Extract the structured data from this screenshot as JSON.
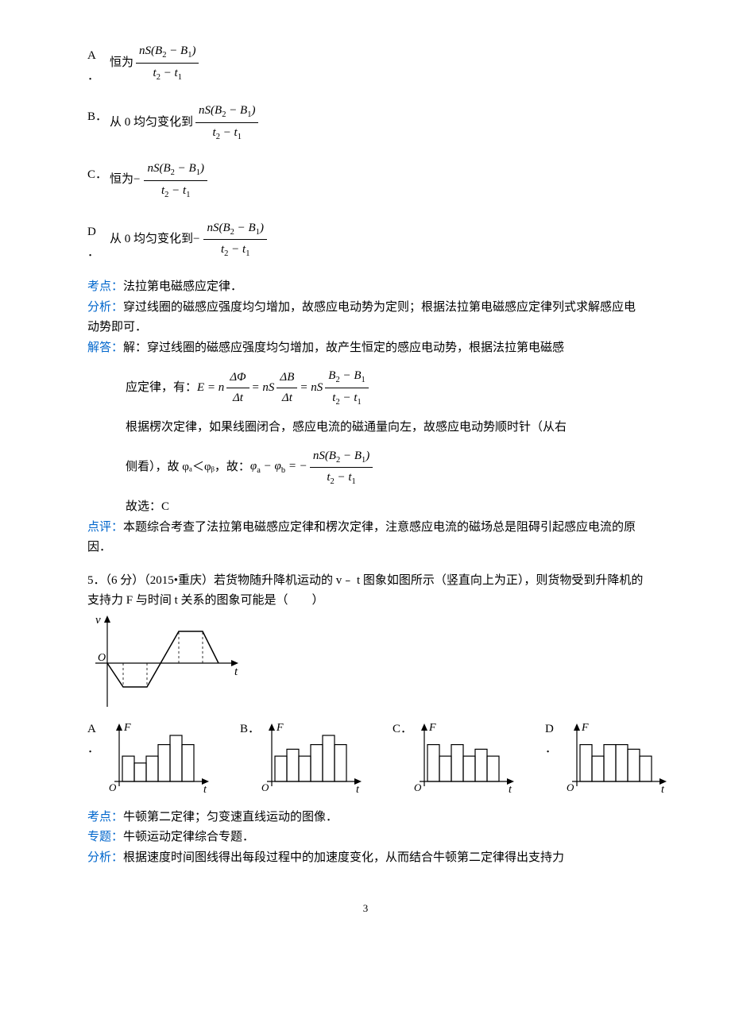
{
  "options_q4": {
    "A": {
      "label": "A",
      "dot": "．",
      "prefix": "恒为"
    },
    "B": {
      "label": "B．",
      "prefix": "从 0 均匀变化到"
    },
    "C": {
      "label": "C．",
      "prefix": "恒为"
    },
    "D": {
      "label": "D",
      "dot": "．",
      "prefix": "从 0 均匀变化到"
    }
  },
  "frac": {
    "num": "nS(B",
    "num_sub1": "2",
    "num_mid": " − B",
    "num_sub2": "1",
    "num_end": ")",
    "den_t": "t",
    "den_sub1": "2",
    "den_mid": " − t",
    "den_sub2": "1"
  },
  "q4_analysis": {
    "kaodian_label": "考点：",
    "kaodian_text": "法拉第电磁感应定律．",
    "fenxi_label": "分析：",
    "fenxi_text": "穿过线圈的磁感应强度均匀增加，故感应电动势为定则；根据法拉第电磁感应定律列式求解感应电动势即可．",
    "jieda_label": "解答：",
    "jieda_text1": "解：穿过线圈的磁感应强度均匀增加，故产生恒定的感应电动势，根据法拉第电磁感",
    "jieda_text2": "应定律，有：",
    "eq_E": "E = n",
    "eq_dphi": "ΔΦ",
    "eq_dt": "Δt",
    "eq_nS": " = nS",
    "eq_dB": "ΔB",
    "eq_nS2": " = nS",
    "jieda_text3": "根据楞次定律，如果线圈闭合，感应电流的磁通量向左，故感应电动势顺时针（从右",
    "jieda_text4": "侧看），故 φₐ＜φᵦ，故：",
    "phi_eq": "φ",
    "phi_a": "a",
    "phi_minus": " − φ",
    "phi_b": "b",
    "phi_equals": " = −",
    "jieda_text5": "故选：C",
    "dianping_label": "点评：",
    "dianping_text": "本题综合考查了法拉第电磁感应定律和楞次定律，注意感应电流的磁场总是阻碍引起感应电流的原因．"
  },
  "q5": {
    "stem": "5．（6 分）（2015•重庆）若货物随升降机运动的 v﹣ t 图象如图所示（竖直向上为正），则货物受到升降机的支持力 F 与时间 t 关系的图象可能是（　　）",
    "options": {
      "A": "A",
      "Adot": "．",
      "B": "B．",
      "C": "C．",
      "D": "D",
      "Ddot": "．"
    },
    "vt_graph": {
      "axis_v": "v",
      "axis_t": "t",
      "axis_O": "O",
      "stroke": "#000000"
    },
    "ft_graph": {
      "axis_F": "F",
      "axis_t": "t",
      "axis_O": "O"
    },
    "bars": {
      "A": [
        0.55,
        0.4,
        0.55,
        0.8,
        1.0,
        0.8
      ],
      "B": [
        0.55,
        0.7,
        0.55,
        0.8,
        1.0,
        0.8
      ],
      "C": [
        0.8,
        0.55,
        0.8,
        0.55,
        0.7,
        0.55
      ],
      "D": [
        0.8,
        0.55,
        0.8,
        0.8,
        0.7,
        0.55
      ]
    }
  },
  "q5_analysis": {
    "kaodian_label": "考点：",
    "kaodian_text": "牛顿第二定律；匀变速直线运动的图像．",
    "zhuanti_label": "专题：",
    "zhuanti_text": "牛顿运动定律综合专题．",
    "fenxi_label": "分析：",
    "fenxi_text": "根据速度时间图线得出每段过程中的加速度变化，从而结合牛顿第二定律得出支持力"
  },
  "page_num": "3"
}
